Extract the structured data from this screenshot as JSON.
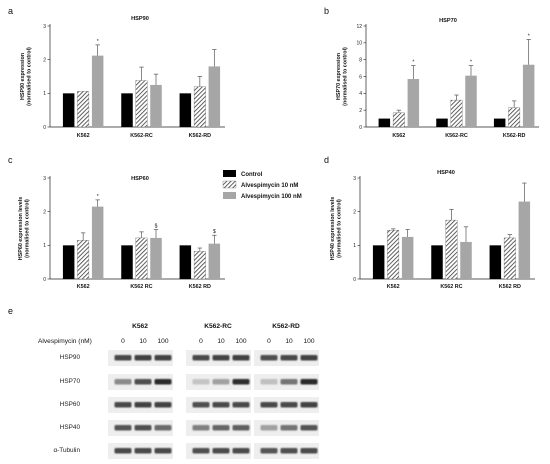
{
  "panels": {
    "a": "a",
    "b": "b",
    "c": "c",
    "d": "d",
    "e": "e"
  },
  "legend": {
    "items": [
      "Control",
      "Alvespimycin 10 nM",
      "Alvespimycin 100 nM"
    ]
  },
  "colors": {
    "control": "#000000",
    "alv10_hatch": "#444444",
    "alv100": "#a6a6a6",
    "error": "#555555"
  },
  "chart_data": [
    {
      "id": "a",
      "type": "bar",
      "title": "HSP90",
      "ylabel": "HSP90 expression\n(normalised to control)",
      "categories": [
        "K562",
        "K562-RC",
        "K562-RD"
      ],
      "ylim": [
        0,
        3
      ],
      "yticks": [
        "0",
        "1",
        "2",
        "3"
      ],
      "series": [
        {
          "name": "Control",
          "values": [
            1,
            1,
            1
          ],
          "errors": [
            0,
            0,
            0
          ]
        },
        {
          "name": "Alvespimycin 10 nM",
          "values": [
            1.06,
            1.38,
            1.2
          ],
          "errors": [
            0,
            0.4,
            0.3
          ]
        },
        {
          "name": "Alvespimycin 100 nM",
          "values": [
            2.12,
            1.25,
            1.8
          ],
          "errors": [
            0.32,
            0.32,
            0.5
          ]
        }
      ],
      "annotations": [
        {
          "category": 0,
          "series": 2,
          "text": "*"
        }
      ]
    },
    {
      "id": "b",
      "type": "bar",
      "title": "HSP70",
      "ylabel": "HSP70 expression\n(normalised to control)",
      "categories": [
        "K562",
        "K562-RC",
        "K562-RD"
      ],
      "ylim": [
        0,
        12
      ],
      "yticks": [
        "0",
        "2",
        "4",
        "6",
        "8",
        "10",
        "12"
      ],
      "series": [
        {
          "name": "Control",
          "values": [
            1,
            1,
            1
          ],
          "errors": [
            0,
            0,
            0
          ]
        },
        {
          "name": "Alvespimycin 10 nM",
          "values": [
            1.7,
            3.2,
            2.3
          ],
          "errors": [
            0.3,
            0.6,
            0.8
          ]
        },
        {
          "name": "Alvespimycin 100 nM",
          "values": [
            5.7,
            6.1,
            7.4
          ],
          "errors": [
            1.6,
            1.2,
            3.0
          ]
        }
      ],
      "annotations": [
        {
          "category": 0,
          "series": 2,
          "text": "*"
        },
        {
          "category": 1,
          "series": 2,
          "text": "*"
        },
        {
          "category": 2,
          "series": 2,
          "text": "*"
        }
      ]
    },
    {
      "id": "c",
      "type": "bar",
      "title": "HSP60",
      "ylabel": "HSP60 expression levels\n(normalised to control)",
      "categories": [
        "K562",
        "K562 RC",
        "K562 RD"
      ],
      "ylim": [
        0,
        3
      ],
      "yticks": [
        "0",
        "1",
        "2",
        "3"
      ],
      "series": [
        {
          "name": "Control",
          "values": [
            1,
            1,
            1
          ],
          "errors": [
            0,
            0,
            0
          ]
        },
        {
          "name": "Alvespimycin 10 nM",
          "values": [
            1.15,
            1.22,
            0.82
          ],
          "errors": [
            0.22,
            0.18,
            0.1
          ]
        },
        {
          "name": "Alvespimycin 100 nM",
          "values": [
            2.15,
            1.22,
            1.05
          ],
          "errors": [
            0.2,
            0.25,
            0.25
          ]
        }
      ],
      "annotations": [
        {
          "category": 0,
          "series": 2,
          "text": "*"
        },
        {
          "category": 1,
          "series": 2,
          "text": "$"
        },
        {
          "category": 2,
          "series": 2,
          "text": "$"
        }
      ]
    },
    {
      "id": "d",
      "type": "bar",
      "title": "HSP40",
      "ylabel": "HSP40 expression levels\n(normalised to control)",
      "categories": [
        "K562",
        "K562 RC",
        "K562 RD"
      ],
      "ylim": [
        0,
        3
      ],
      "yticks": [
        "0",
        "1",
        "2",
        "3"
      ],
      "series": [
        {
          "name": "Control",
          "values": [
            1,
            1,
            1
          ],
          "errors": [
            0,
            0,
            0
          ]
        },
        {
          "name": "Alvespimycin 10 nM",
          "values": [
            1.45,
            1.75,
            1.22
          ],
          "errors": [
            0.04,
            0.32,
            0.1
          ]
        },
        {
          "name": "Alvespimycin 100 nM",
          "values": [
            1.25,
            1.1,
            2.3
          ],
          "errors": [
            0.22,
            0.45,
            0.55
          ]
        }
      ],
      "annotations": []
    }
  ],
  "blot": {
    "treatment_label": "Alvespimycin (nM)",
    "groups": [
      {
        "name": "K562",
        "conc": [
          "0",
          "10",
          "100"
        ]
      },
      {
        "name": "K562-RC",
        "conc": [
          "0",
          "10",
          "100"
        ]
      },
      {
        "name": "K562-RD",
        "conc": [
          "0",
          "10",
          "100"
        ]
      }
    ],
    "rows": [
      {
        "label": "HSP90",
        "intensity": [
          [
            0.75,
            0.8,
            0.78
          ],
          [
            0.75,
            0.78,
            0.8
          ],
          [
            0.72,
            0.75,
            0.78
          ]
        ]
      },
      {
        "label": "HSP70",
        "intensity": [
          [
            0.45,
            0.72,
            0.9
          ],
          [
            0.18,
            0.35,
            0.88
          ],
          [
            0.2,
            0.55,
            0.9
          ]
        ]
      },
      {
        "label": "HSP60",
        "intensity": [
          [
            0.75,
            0.78,
            0.78
          ],
          [
            0.72,
            0.75,
            0.76
          ],
          [
            0.75,
            0.76,
            0.78
          ]
        ]
      },
      {
        "label": "HSP40",
        "intensity": [
          [
            0.7,
            0.72,
            0.6
          ],
          [
            0.5,
            0.62,
            0.65
          ],
          [
            0.35,
            0.55,
            0.7
          ]
        ]
      },
      {
        "label": "α-Tubulin",
        "intensity": [
          [
            0.75,
            0.75,
            0.75
          ],
          [
            0.72,
            0.74,
            0.74
          ],
          [
            0.7,
            0.72,
            0.74
          ]
        ]
      }
    ]
  }
}
